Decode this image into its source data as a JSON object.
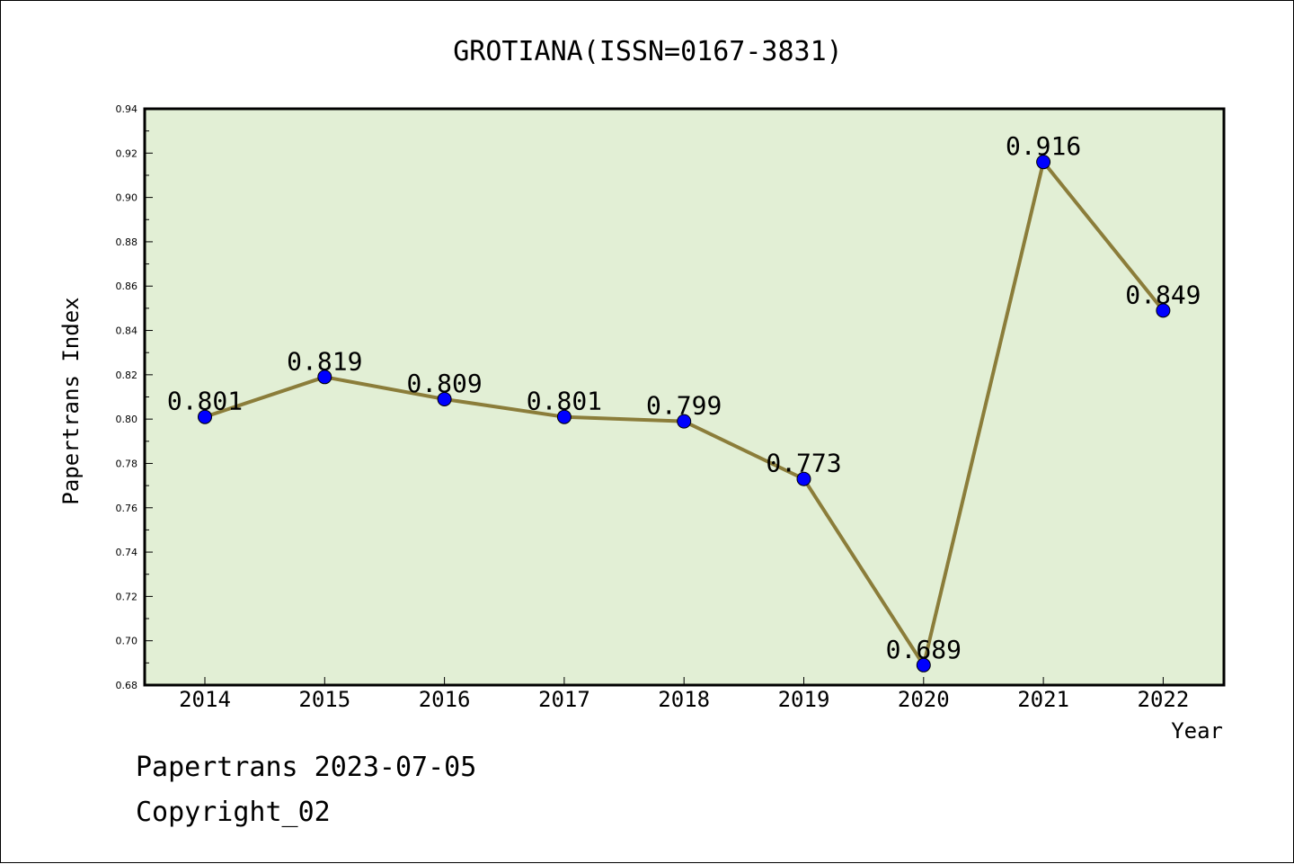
{
  "chart_data": {
    "type": "line",
    "title": "GROTIANA(ISSN=0167-3831)",
    "xlabel": "Year",
    "ylabel": "Papertrans Index",
    "categories": [
      "2014",
      "2015",
      "2016",
      "2017",
      "2018",
      "2019",
      "2020",
      "2021",
      "2022"
    ],
    "values": [
      0.801,
      0.819,
      0.809,
      0.801,
      0.799,
      0.773,
      0.689,
      0.916,
      0.849
    ],
    "data_labels": [
      "0.801",
      "0.819",
      "0.809",
      "0.801",
      "0.799",
      "0.773",
      "0.689",
      "0.916",
      "0.849"
    ],
    "ylim": [
      0.68,
      0.94
    ],
    "yticks": [
      "0.68",
      "0.70",
      "0.72",
      "0.74",
      "0.76",
      "0.78",
      "0.80",
      "0.82",
      "0.84",
      "0.86",
      "0.88",
      "0.90",
      "0.92",
      "0.94"
    ],
    "grid": false,
    "colors": {
      "plot_background": "#e2efd5",
      "line": "#8b7d3a",
      "marker": "#0000ff"
    }
  },
  "footer": {
    "line1": "Papertrans 2023-07-05",
    "line2": "Copyright_02"
  }
}
